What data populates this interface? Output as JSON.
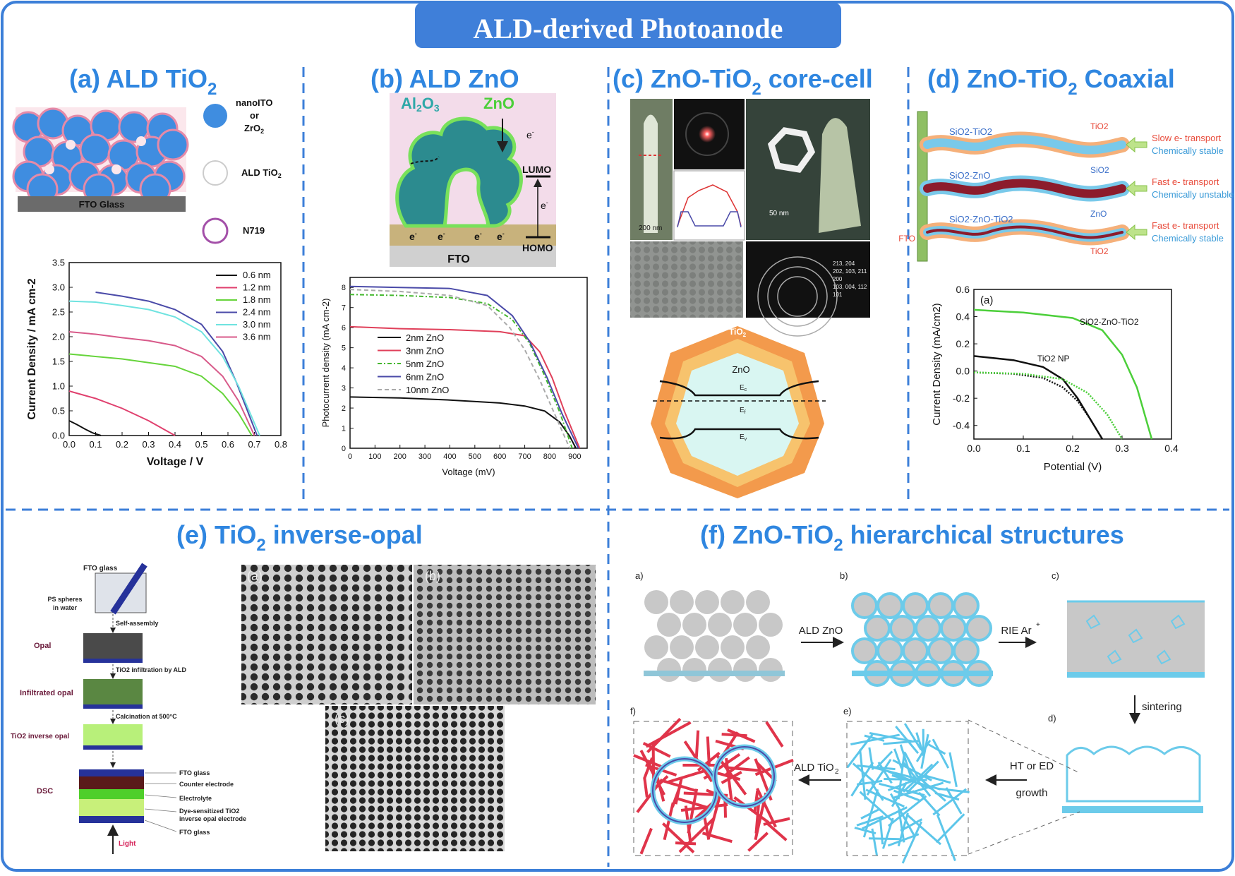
{
  "title": "ALD-derived Photoanode",
  "panels": {
    "a": {
      "title": "(a) ALD TiO",
      "title_sub": "2",
      "substrate": "FTO Glass",
      "legend": [
        {
          "label": "nanoITO\nor\nZrO2",
          "color": "#3f8de0"
        },
        {
          "label": "ALD TiO2",
          "color": "#ffffff"
        },
        {
          "label": "N719",
          "color": "#ffffff"
        }
      ]
    },
    "b": {
      "title": "(b) ALD ZnO",
      "al2o3": "Al2O3",
      "zno": "ZnO",
      "lumo": "LUMO",
      "homo": "HOMO",
      "fto": "FTO",
      "electron": "e"
    },
    "c": {
      "title": "(c) ZnO-TiO",
      "title_sub": "2",
      "title_end": " core-cell",
      "tio2": "TiO2",
      "zno": "ZnO",
      "ec": "Ec",
      "ef": "Ef",
      "ev": "Ev",
      "scale1": "200 nm",
      "scale2": "50 nm",
      "diffraction": [
        "213, 204",
        "202, 103, 211",
        "200",
        "103, 004, 112",
        "101"
      ]
    },
    "d": {
      "title": "(d) ZnO-TiO",
      "title_sub": "2",
      "title_end": " Coaxial",
      "rows": [
        {
          "wire": "SiO2-TiO2",
          "tag": "TiO2",
          "note1": "Slow e- transport",
          "note2": "Chemically stable"
        },
        {
          "wire": "SiO2-ZnO",
          "tag": "SiO2",
          "note1": "Fast e- transport",
          "note2": "Chemically unstable"
        },
        {
          "wire": "SiO2-ZnO-TiO2",
          "tag": "ZnO",
          "note1": "Fast e- transport",
          "note2": "Chemically stable"
        }
      ],
      "fto": "FTO",
      "tag_bottom": "TiO2"
    },
    "e": {
      "title": "(e) TiO",
      "title_sub": "2",
      "title_end": " inverse-opal",
      "steps": [
        "FTO glass",
        "PS spheres in water",
        "Self-assembly",
        "Opal",
        "TiO2 infiltration by ALD",
        "Infiltrated opal",
        "Calcination at 500°C",
        "TiO2 inverse opal",
        "DSC"
      ],
      "dsc_layers": [
        "FTO glass",
        "Counter electrode",
        "Electrolyte",
        "Dye-sensitized TiO2 inverse opal electrode",
        "FTO glass"
      ],
      "light": "Light",
      "sem_labels": [
        "(a)",
        "(b)",
        "(c)"
      ]
    },
    "f": {
      "title": "(f) ZnO-TiO",
      "title_sub": "2",
      "title_end": " hierarchical structures",
      "labels": [
        "a)",
        "b)",
        "c)",
        "d)",
        "e)",
        "f)"
      ],
      "arrows": [
        "ALD ZnO",
        "RIE Ar+",
        "sintering",
        "HT or ED growth",
        "ALD TiO2"
      ]
    }
  },
  "chart_data": [
    {
      "type": "line",
      "panel": "a",
      "xlabel": "Voltage / V",
      "ylabel": "Current Density / mA cm-2",
      "xlim": [
        0.0,
        0.8
      ],
      "ylim": [
        0.0,
        3.5
      ],
      "xticks": [
        "0.0",
        "0.1",
        "0.2",
        "0.3",
        "0.4",
        "0.5",
        "0.6",
        "0.7",
        "0.8"
      ],
      "yticks": [
        "0.0",
        "0.5",
        "1.0",
        "1.5",
        "2.0",
        "2.5",
        "3.0",
        "3.5"
      ],
      "series": [
        {
          "name": "0.6 nm",
          "color": "#111111",
          "x": [
            0,
            0.03,
            0.06,
            0.09,
            0.12
          ],
          "y": [
            0.3,
            0.22,
            0.13,
            0.05,
            0
          ]
        },
        {
          "name": "1.2 nm",
          "color": "#e0406e",
          "x": [
            0,
            0.1,
            0.2,
            0.3,
            0.36,
            0.4
          ],
          "y": [
            0.9,
            0.75,
            0.55,
            0.3,
            0.12,
            0
          ]
        },
        {
          "name": "1.8 nm",
          "color": "#66d43b",
          "x": [
            0,
            0.2,
            0.4,
            0.5,
            0.58,
            0.64,
            0.69
          ],
          "y": [
            1.65,
            1.55,
            1.4,
            1.2,
            0.85,
            0.45,
            0
          ]
        },
        {
          "name": "2.4 nm",
          "color": "#4a4aa8",
          "x": [
            0.1,
            0.2,
            0.3,
            0.4,
            0.5,
            0.58,
            0.63,
            0.67,
            0.71
          ],
          "y": [
            2.9,
            2.82,
            2.72,
            2.55,
            2.25,
            1.7,
            1.1,
            0.55,
            0
          ]
        },
        {
          "name": "3.0 nm",
          "color": "#6fe3e0",
          "x": [
            0,
            0.1,
            0.2,
            0.3,
            0.4,
            0.5,
            0.58,
            0.64,
            0.68,
            0.72
          ],
          "y": [
            2.72,
            2.7,
            2.63,
            2.55,
            2.4,
            2.1,
            1.6,
            1.0,
            0.5,
            0
          ]
        },
        {
          "name": "3.6 nm",
          "color": "#d85a8a",
          "x": [
            0,
            0.1,
            0.2,
            0.3,
            0.4,
            0.5,
            0.58,
            0.64,
            0.7
          ],
          "y": [
            2.1,
            2.05,
            1.98,
            1.92,
            1.82,
            1.6,
            1.2,
            0.7,
            0
          ]
        }
      ]
    },
    {
      "type": "line",
      "panel": "b",
      "xlabel": "Voltage (mV)",
      "ylabel": "Photocurrent density (mA cm-2)",
      "xlim": [
        0,
        950
      ],
      "ylim": [
        0,
        8.5
      ],
      "xticks": [
        "0",
        "100",
        "200",
        "300",
        "400",
        "500",
        "600",
        "700",
        "800",
        "900"
      ],
      "yticks": [
        "0",
        "1",
        "2",
        "3",
        "4",
        "5",
        "6",
        "7",
        "8"
      ],
      "series": [
        {
          "name": "2nm ZnO",
          "color": "#111111",
          "dash": "",
          "x": [
            0,
            200,
            400,
            600,
            700,
            780,
            840,
            880,
            905
          ],
          "y": [
            2.55,
            2.5,
            2.4,
            2.25,
            2.1,
            1.85,
            1.3,
            0.6,
            0
          ]
        },
        {
          "name": "3nm ZnO",
          "color": "#e0405a",
          "dash": "",
          "x": [
            0,
            200,
            400,
            600,
            700,
            760,
            810,
            860,
            920
          ],
          "y": [
            6.05,
            5.95,
            5.9,
            5.8,
            5.6,
            4.8,
            3.5,
            1.8,
            0
          ]
        },
        {
          "name": "5nm ZnO",
          "color": "#44b82e",
          "dash": "6,3,2,3",
          "x": [
            0,
            200,
            400,
            550,
            650,
            720,
            780,
            840,
            890
          ],
          "y": [
            7.65,
            7.6,
            7.5,
            7.2,
            6.4,
            5.2,
            3.6,
            1.8,
            0
          ]
        },
        {
          "name": "6nm ZnO",
          "color": "#4a4aa8",
          "dash": "",
          "x": [
            0,
            200,
            400,
            550,
            650,
            720,
            790,
            850,
            915
          ],
          "y": [
            8.05,
            8.0,
            7.95,
            7.6,
            6.6,
            5.3,
            3.5,
            1.7,
            0
          ]
        },
        {
          "name": "10nm ZnO",
          "color": "#aaaaaa",
          "dash": "6,4",
          "x": [
            0,
            200,
            400,
            550,
            640,
            700,
            760,
            820,
            880
          ],
          "y": [
            7.9,
            7.8,
            7.6,
            7.1,
            6.0,
            4.9,
            3.4,
            1.7,
            0
          ]
        }
      ]
    },
    {
      "type": "line",
      "panel": "d",
      "xlabel": "Potential (V)",
      "ylabel": "Current Density (mA/cm2)",
      "inner_label": "(a)",
      "xlim": [
        0.0,
        0.4
      ],
      "ylim": [
        -0.5,
        0.6
      ],
      "xticks": [
        "0.0",
        "0.1",
        "0.2",
        "0.3",
        "0.4"
      ],
      "yticks": [
        "0.6",
        "0.4",
        "0.2",
        "0.0",
        "-0.2",
        "-0.4"
      ],
      "series": [
        {
          "name": "SiO2-ZnO-TiO2",
          "color": "#4ccf3a",
          "dash": "",
          "x": [
            0,
            0.1,
            0.2,
            0.26,
            0.3,
            0.33,
            0.36
          ],
          "y": [
            0.45,
            0.43,
            0.39,
            0.3,
            0.12,
            -0.12,
            -0.5
          ]
        },
        {
          "name": "TiO2 NP",
          "color": "#111111",
          "dash": "",
          "x": [
            0,
            0.08,
            0.14,
            0.18,
            0.21,
            0.235,
            0.26
          ],
          "y": [
            0.11,
            0.08,
            0.03,
            -0.06,
            -0.2,
            -0.35,
            -0.5
          ]
        },
        {
          "name": "",
          "color": "#111111",
          "dash": "2,2",
          "x": [
            0,
            0.08,
            0.14,
            0.18,
            0.21,
            0.235,
            0.26
          ],
          "y": [
            -0.01,
            -0.02,
            -0.05,
            -0.12,
            -0.22,
            -0.35,
            -0.5
          ]
        },
        {
          "name": "",
          "color": "#4ccf3a",
          "dash": "2,2",
          "x": [
            0,
            0.1,
            0.18,
            0.23,
            0.27,
            0.3
          ],
          "y": [
            -0.01,
            -0.02,
            -0.06,
            -0.16,
            -0.32,
            -0.5
          ]
        }
      ]
    }
  ]
}
